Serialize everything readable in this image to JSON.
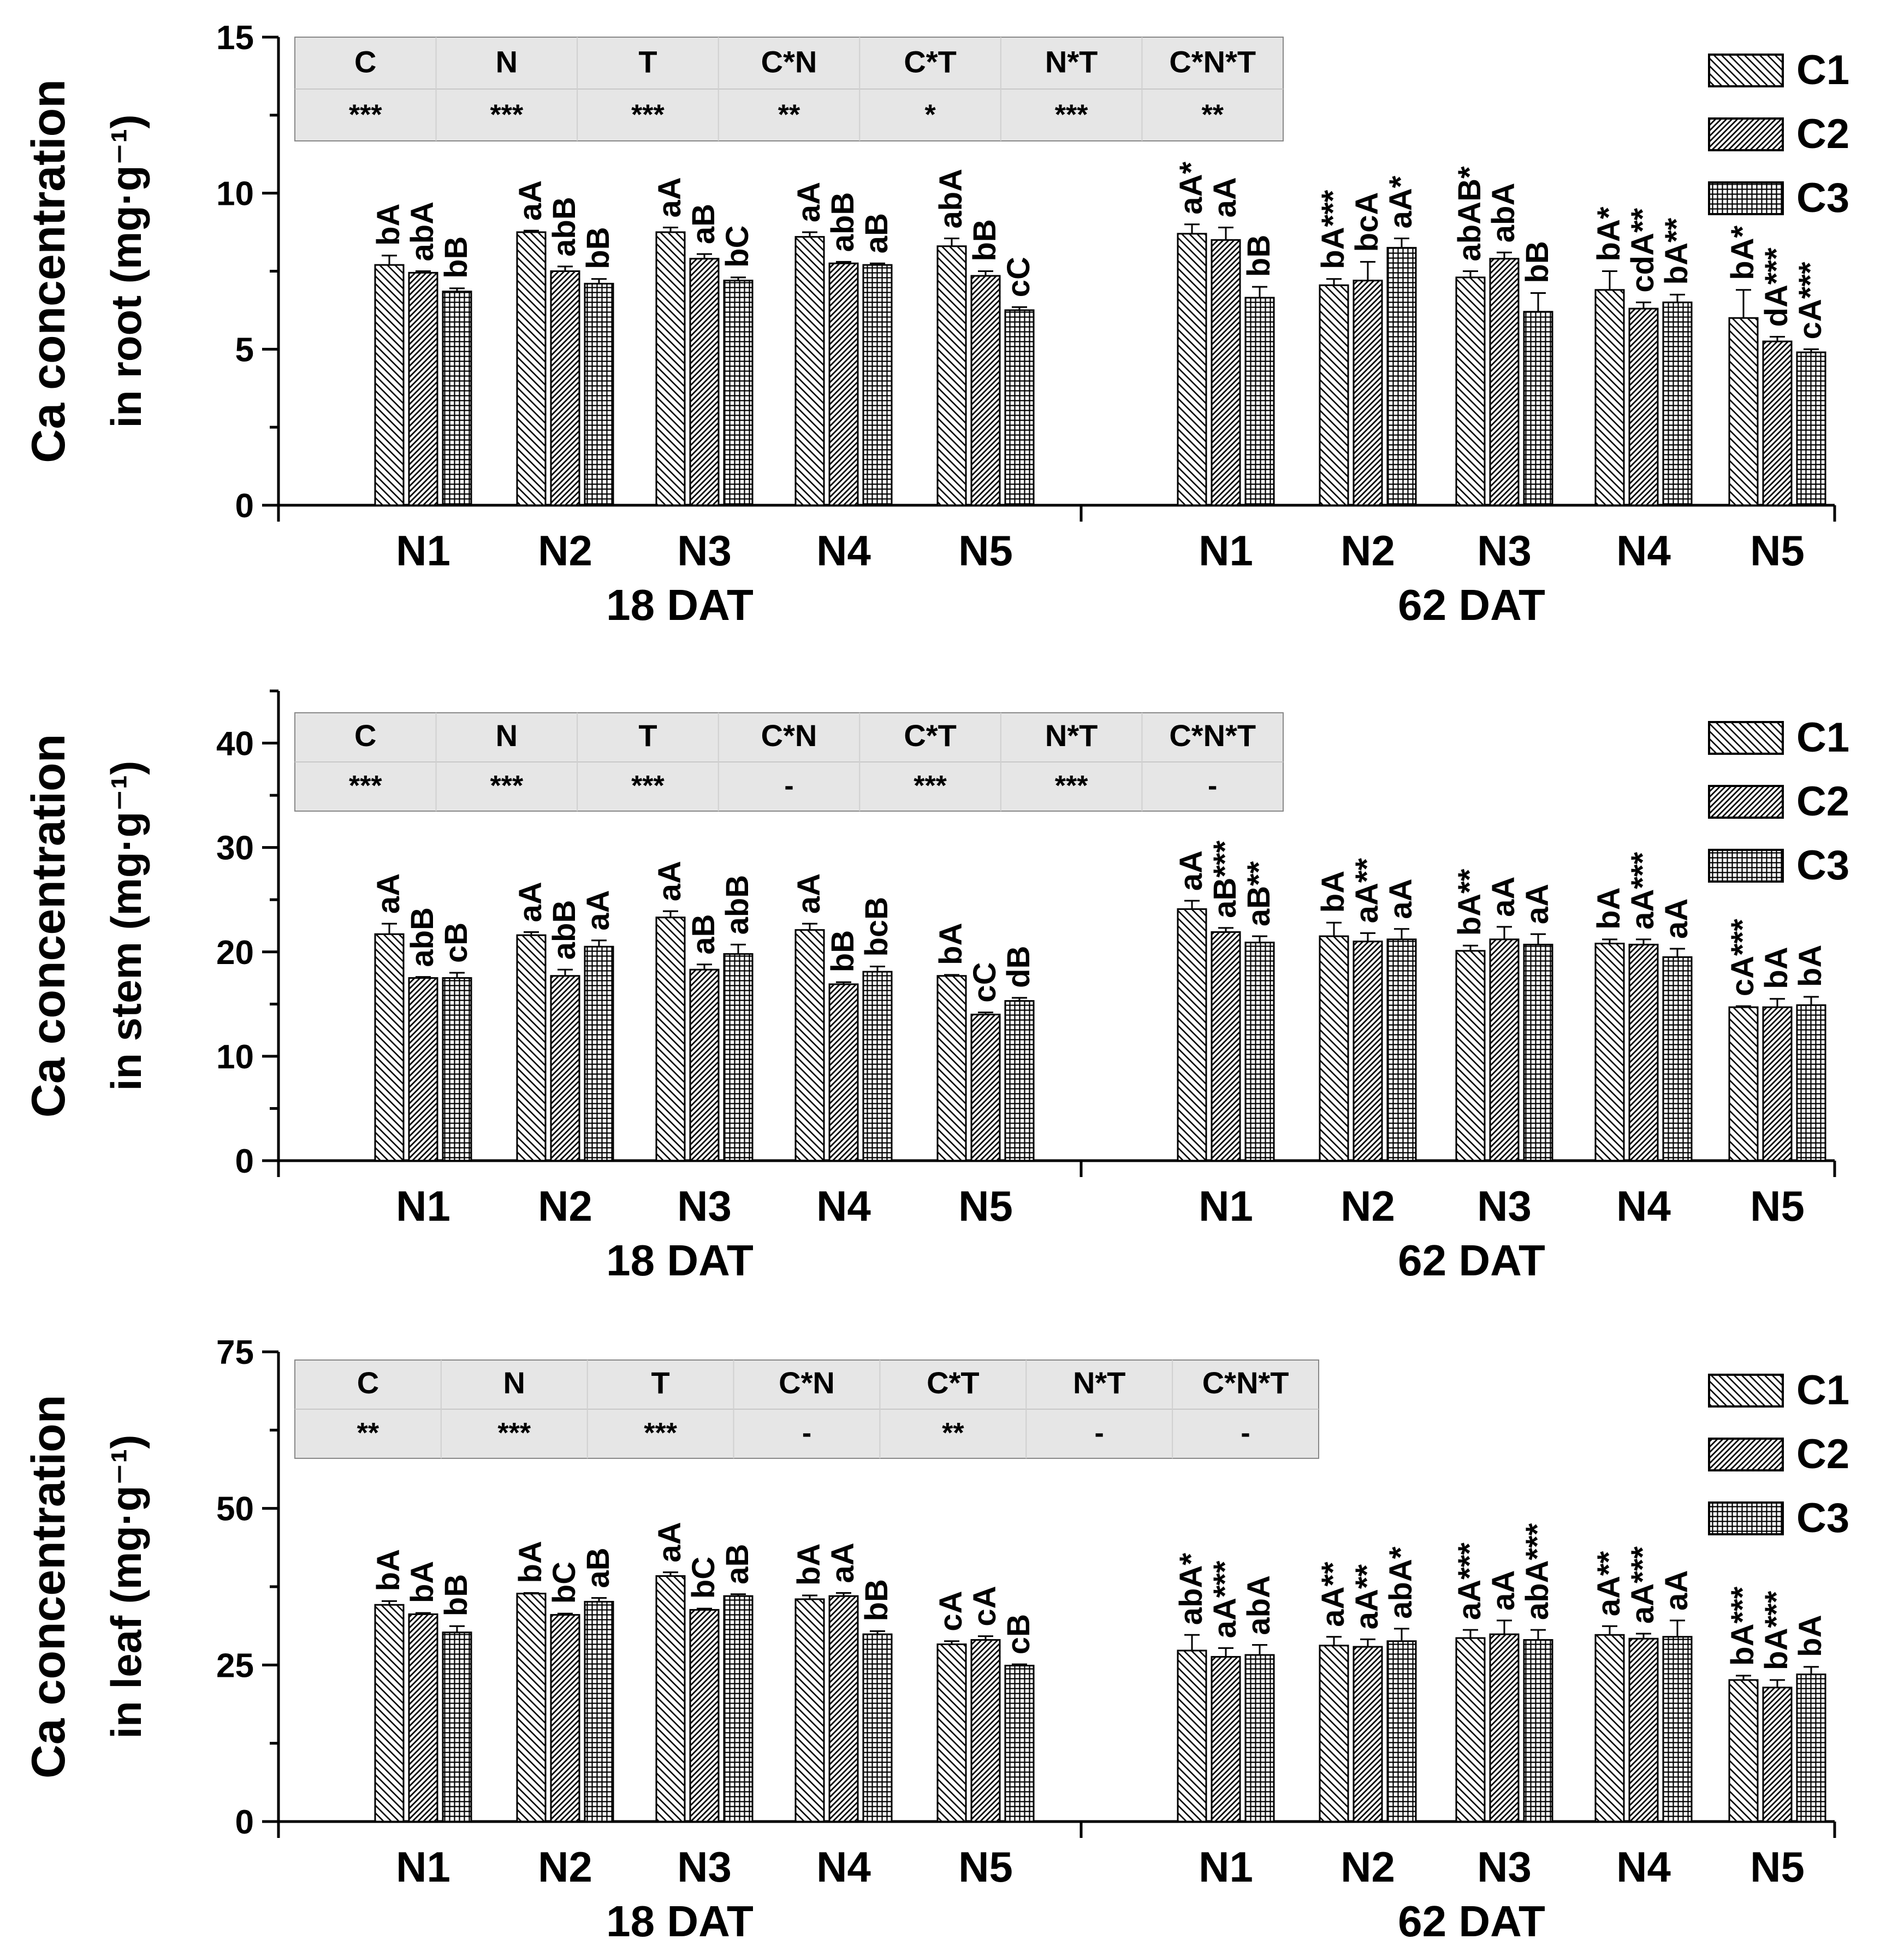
{
  "legend": [
    "C1",
    "C2",
    "C3"
  ],
  "x_groups": [
    "N1",
    "N2",
    "N3",
    "N4",
    "N5"
  ],
  "periods": [
    "18 DAT",
    "62 DAT"
  ],
  "colors": {
    "bar_stroke": "#000000",
    "table_fill": "#e6e6e6",
    "background": "#ffffff"
  },
  "chart_data": [
    {
      "type": "bar",
      "title": "",
      "ylabel_line1": "Ca concentration",
      "ylabel_line2": "in root (mg·g⁻¹)",
      "ylim": [
        0,
        15
      ],
      "yticks": [
        0,
        5,
        10,
        15
      ],
      "series_names": [
        "C1",
        "C2",
        "C3"
      ],
      "sig_table": {
        "headers": [
          "C",
          "N",
          "T",
          "C*N",
          "C*T",
          "N*T",
          "C*N*T"
        ],
        "values": [
          "***",
          "***",
          "***",
          "**",
          "*",
          "***",
          "**"
        ]
      },
      "periods": [
        {
          "label": "18 DAT",
          "groups": [
            {
              "name": "N1",
              "values": [
                7.7,
                7.45,
                6.85
              ],
              "errors": [
                0.3,
                0.05,
                0.1
              ],
              "labels": [
                "bA",
                "abA",
                "bB"
              ]
            },
            {
              "name": "N2",
              "values": [
                8.75,
                7.5,
                7.1
              ],
              "errors": [
                0.05,
                0.15,
                0.15
              ],
              "labels": [
                "aA",
                "abB",
                "bB"
              ]
            },
            {
              "name": "N3",
              "values": [
                8.75,
                7.9,
                7.2
              ],
              "errors": [
                0.15,
                0.15,
                0.1
              ],
              "labels": [
                "aA",
                "aB",
                "bC"
              ]
            },
            {
              "name": "N4",
              "values": [
                8.6,
                7.75,
                7.7
              ],
              "errors": [
                0.15,
                0.05,
                0.05
              ],
              "labels": [
                "aA",
                "abB",
                "aB"
              ]
            },
            {
              "name": "N5",
              "values": [
                8.3,
                7.35,
                6.25
              ],
              "errors": [
                0.25,
                0.15,
                0.1
              ],
              "labels": [
                "abA",
                "bB",
                "cC"
              ]
            }
          ]
        },
        {
          "label": "62 DAT",
          "groups": [
            {
              "name": "N1",
              "values": [
                8.7,
                8.5,
                6.65
              ],
              "errors": [
                0.3,
                0.4,
                0.35
              ],
              "labels": [
                "aA*",
                "aA",
                "bB"
              ]
            },
            {
              "name": "N2",
              "values": [
                7.05,
                7.2,
                8.25
              ],
              "errors": [
                0.2,
                0.6,
                0.3
              ],
              "labels": [
                "bA***",
                "bcA",
                "aA*"
              ]
            },
            {
              "name": "N3",
              "values": [
                7.3,
                7.9,
                6.2
              ],
              "errors": [
                0.2,
                0.2,
                0.6
              ],
              "labels": [
                "abAB*",
                "abA",
                "bB"
              ]
            },
            {
              "name": "N4",
              "values": [
                6.9,
                6.3,
                6.5
              ],
              "errors": [
                0.6,
                0.2,
                0.25
              ],
              "labels": [
                "bA*",
                "cdA**",
                "bA**"
              ]
            },
            {
              "name": "N5",
              "values": [
                6.0,
                5.25,
                4.9
              ],
              "errors": [
                0.9,
                0.15,
                0.1
              ],
              "labels": [
                "bA*",
                "dA***",
                "cA***"
              ]
            }
          ]
        }
      ]
    },
    {
      "type": "bar",
      "title": "",
      "ylabel_line1": "Ca concentration",
      "ylabel_line2": "in stem (mg·g⁻¹)",
      "ylim": [
        0,
        45
      ],
      "yticks": [
        0,
        10,
        20,
        30,
        40
      ],
      "series_names": [
        "C1",
        "C2",
        "C3"
      ],
      "sig_table": {
        "headers": [
          "C",
          "N",
          "T",
          "C*N",
          "C*T",
          "N*T",
          "C*N*T"
        ],
        "values": [
          "***",
          "***",
          "***",
          "-",
          "***",
          "***",
          "-"
        ]
      },
      "periods": [
        {
          "label": "18 DAT",
          "groups": [
            {
              "name": "N1",
              "values": [
                21.7,
                17.5,
                17.5
              ],
              "errors": [
                1.0,
                0.1,
                0.5
              ],
              "labels": [
                "aA",
                "abB",
                "cB"
              ]
            },
            {
              "name": "N2",
              "values": [
                21.6,
                17.7,
                20.5
              ],
              "errors": [
                0.3,
                0.6,
                0.6
              ],
              "labels": [
                "aA",
                "abB",
                "aA"
              ]
            },
            {
              "name": "N3",
              "values": [
                23.3,
                18.3,
                19.8
              ],
              "errors": [
                0.6,
                0.5,
                0.9
              ],
              "labels": [
                "aA",
                "aB",
                "abB"
              ]
            },
            {
              "name": "N4",
              "values": [
                22.1,
                16.9,
                18.1
              ],
              "errors": [
                0.6,
                0.2,
                0.5
              ],
              "labels": [
                "aA",
                "bB",
                "bcB"
              ]
            },
            {
              "name": "N5",
              "values": [
                17.7,
                14.0,
                15.3
              ],
              "errors": [
                0.1,
                0.2,
                0.3
              ],
              "labels": [
                "bA",
                "cC",
                "dB"
              ]
            }
          ]
        },
        {
          "label": "62 DAT",
          "groups": [
            {
              "name": "N1",
              "values": [
                24.1,
                21.9,
                20.9
              ],
              "errors": [
                0.8,
                0.4,
                0.6
              ],
              "labels": [
                "aA",
                "aB***",
                "aB**"
              ]
            },
            {
              "name": "N2",
              "values": [
                21.5,
                21.0,
                21.2
              ],
              "errors": [
                1.3,
                0.8,
                1.0
              ],
              "labels": [
                "bA",
                "aA**",
                "aA"
              ]
            },
            {
              "name": "N3",
              "values": [
                20.1,
                21.2,
                20.7
              ],
              "errors": [
                0.5,
                1.2,
                1.0
              ],
              "labels": [
                "bA**",
                "aA",
                "aA"
              ]
            },
            {
              "name": "N4",
              "values": [
                20.8,
                20.7,
                19.5
              ],
              "errors": [
                0.4,
                0.5,
                0.8
              ],
              "labels": [
                "bA",
                "aA***",
                "aA"
              ]
            },
            {
              "name": "N5",
              "values": [
                14.7,
                14.7,
                14.9
              ],
              "errors": [
                0.1,
                0.8,
                0.8
              ],
              "labels": [
                "cA***",
                "bA",
                "bA"
              ]
            }
          ]
        }
      ]
    },
    {
      "type": "bar",
      "title": "",
      "ylabel_line1": "Ca concentration",
      "ylabel_line2": "in leaf (mg·g⁻¹)",
      "ylim": [
        0,
        75
      ],
      "yticks": [
        0,
        25,
        50,
        75
      ],
      "series_names": [
        "C1",
        "C2",
        "C3"
      ],
      "sig_table": {
        "headers": [
          "C",
          "N",
          "T",
          "C*N",
          "C*T",
          "N*T",
          "C*N*T"
        ],
        "values": [
          "**",
          "***",
          "***",
          "-",
          "**",
          "-",
          "-"
        ]
      },
      "periods": [
        {
          "label": "18 DAT",
          "groups": [
            {
              "name": "N1",
              "values": [
                34.6,
                33.1,
                30.2
              ],
              "errors": [
                0.6,
                0.2,
                1.0
              ],
              "labels": [
                "bA",
                "bA",
                "bB"
              ]
            },
            {
              "name": "N2",
              "values": [
                36.4,
                33.0,
                35.1
              ],
              "errors": [
                0.1,
                0.2,
                0.6
              ],
              "labels": [
                "bA",
                "bC",
                "aB"
              ]
            },
            {
              "name": "N3",
              "values": [
                39.2,
                33.8,
                36.0
              ],
              "errors": [
                0.6,
                0.2,
                0.3
              ],
              "labels": [
                "aA",
                "bC",
                "aB"
              ]
            },
            {
              "name": "N4",
              "values": [
                35.5,
                36.0,
                29.9
              ],
              "errors": [
                0.6,
                0.5,
                0.5
              ],
              "labels": [
                "bA",
                "aA",
                "bB"
              ]
            },
            {
              "name": "N5",
              "values": [
                28.3,
                29.0,
                24.9
              ],
              "errors": [
                0.5,
                0.6,
                0.2
              ],
              "labels": [
                "cA",
                "cA",
                "cB"
              ]
            }
          ]
        },
        {
          "label": "62 DAT",
          "groups": [
            {
              "name": "N1",
              "values": [
                27.3,
                26.3,
                26.6
              ],
              "errors": [
                2.5,
                1.4,
                1.6
              ],
              "labels": [
                "abA*",
                "aA***",
                "abA"
              ]
            },
            {
              "name": "N2",
              "values": [
                28.1,
                27.9,
                28.8
              ],
              "errors": [
                1.4,
                1.2,
                2.0
              ],
              "labels": [
                "aA**",
                "aA**",
                "abA*"
              ]
            },
            {
              "name": "N3",
              "values": [
                29.3,
                29.9,
                29.0
              ],
              "errors": [
                1.3,
                2.2,
                1.6
              ],
              "labels": [
                "aA***",
                "aA",
                "abA***"
              ]
            },
            {
              "name": "N4",
              "values": [
                29.8,
                29.2,
                29.5
              ],
              "errors": [
                1.4,
                0.8,
                2.6
              ],
              "labels": [
                "aA**",
                "aA***",
                "aA"
              ]
            },
            {
              "name": "N5",
              "values": [
                22.6,
                21.4,
                23.5
              ],
              "errors": [
                0.7,
                1.2,
                1.2
              ],
              "labels": [
                "bA***",
                "bA***",
                "bA"
              ]
            }
          ]
        }
      ]
    }
  ]
}
